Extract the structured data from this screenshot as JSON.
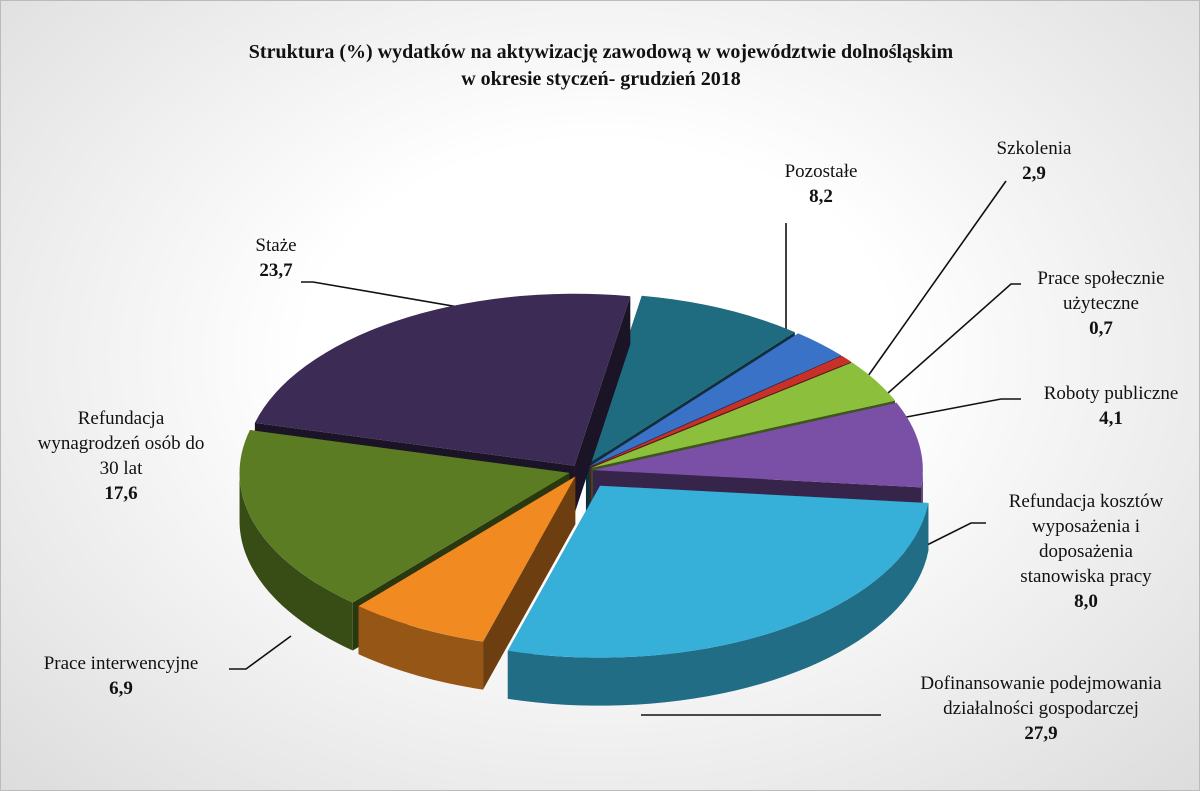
{
  "chart_data": {
    "type": "pie3d",
    "title": "Struktura (%) wydatków na aktywizację zawodową w województwie dolnośląskim\nw okresie styczeń- grudzień 2018",
    "categories": [
      "Pozostałe",
      "Szkolenia",
      "Prace społecznie\nużyteczne",
      "Roboty publiczne",
      "Refundacja kosztów\nwyposażenia i\ndoposażenia\nstanowiska pracy",
      "Dofinansowanie podejmowania\ndziałalności gospodarczej",
      "Prace interwencyjne",
      "Refundacja\nwynagrodzeń osób do\n30 lat",
      "Staże"
    ],
    "values": [
      8.2,
      2.9,
      0.7,
      4.1,
      8.0,
      27.9,
      6.9,
      17.6,
      23.7
    ],
    "value_labels": [
      "8,2",
      "2,9",
      "0,7",
      "4,1",
      "8,0",
      "27,9",
      "6,9",
      "17,6",
      "23,7"
    ],
    "colors": [
      "#1f6b80",
      "#3a72c8",
      "#c8302a",
      "#8cc03c",
      "#7a4fa6",
      "#36b0d8",
      "#f28a22",
      "#5b7c22",
      "#3c2b55"
    ]
  }
}
